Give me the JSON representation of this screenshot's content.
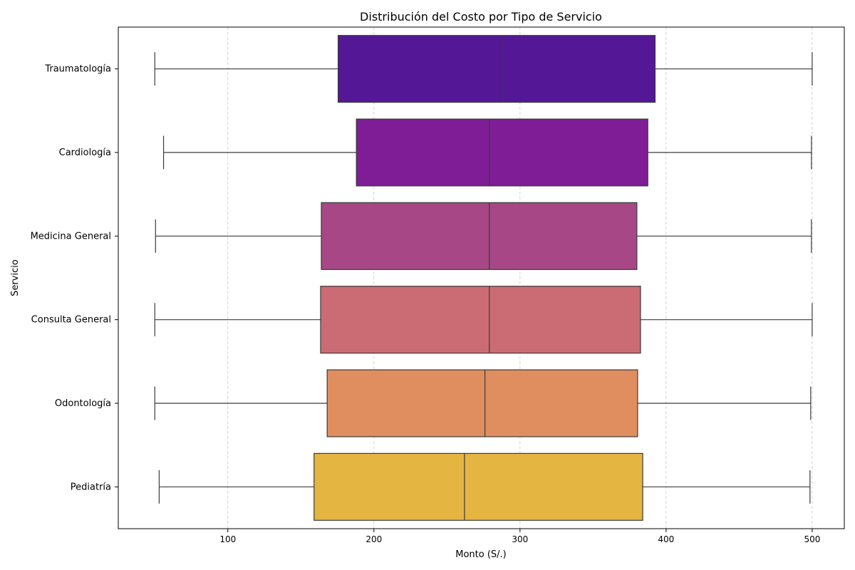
{
  "chart_data": {
    "type": "boxplot",
    "orientation": "horizontal",
    "title": "Distribución del Costo por Tipo de Servicio",
    "xlabel": "Monto (S/.)",
    "ylabel": "Servicio",
    "xlim": [
      25,
      522
    ],
    "xticks": [
      100,
      200,
      300,
      400,
      500
    ],
    "grid": "x-dashed",
    "categories": [
      "Traumatología",
      "Cardiología",
      "Medicina General",
      "Consulta General",
      "Odontología",
      "Pediatría"
    ],
    "boxes": [
      {
        "category": "Traumatología",
        "whisker_low": 50,
        "q1": 175.5,
        "median": 288.5,
        "q3": 392.5,
        "whisker_high": 500,
        "color": "#541796"
      },
      {
        "category": "Cardiología",
        "whisker_low": 56,
        "q1": 188,
        "median": 279,
        "q3": 387.5,
        "whisker_high": 499.5,
        "color": "#7e1d95"
      },
      {
        "category": "Medicina General",
        "whisker_low": 50.5,
        "q1": 164,
        "median": 279,
        "q3": 380,
        "whisker_high": 499.5,
        "color": "#a84785"
      },
      {
        "category": "Consulta General",
        "whisker_low": 50,
        "q1": 163.5,
        "median": 279,
        "q3": 382.5,
        "whisker_high": 500,
        "color": "#cb6b73"
      },
      {
        "category": "Odontología",
        "whisker_low": 50,
        "q1": 168,
        "median": 276,
        "q3": 380.5,
        "whisker_high": 499,
        "color": "#e08e5f"
      },
      {
        "category": "Pediatría",
        "whisker_low": 53,
        "q1": 159,
        "median": 262,
        "q3": 384,
        "whisker_high": 498.5,
        "color": "#e5b542"
      }
    ]
  }
}
